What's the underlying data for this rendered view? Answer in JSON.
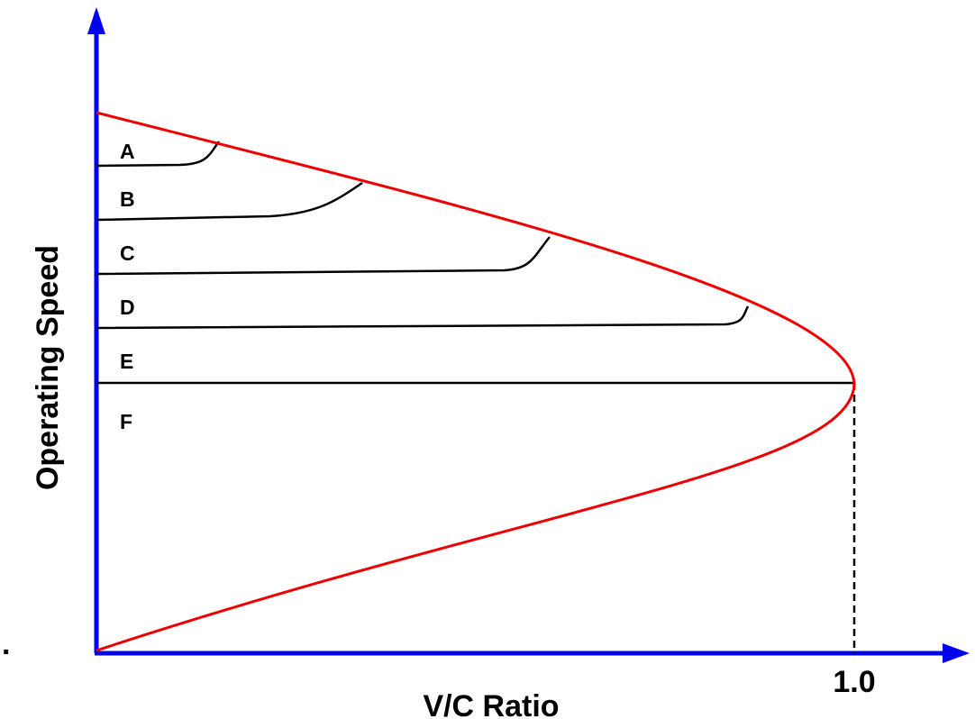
{
  "axes": {
    "y_label": "Operating Speed",
    "x_label": "V/C Ratio",
    "x_mark": "1.0",
    "origin_mark": "."
  },
  "levels": [
    "A",
    "B",
    "C",
    "D",
    "E",
    "F"
  ]
}
